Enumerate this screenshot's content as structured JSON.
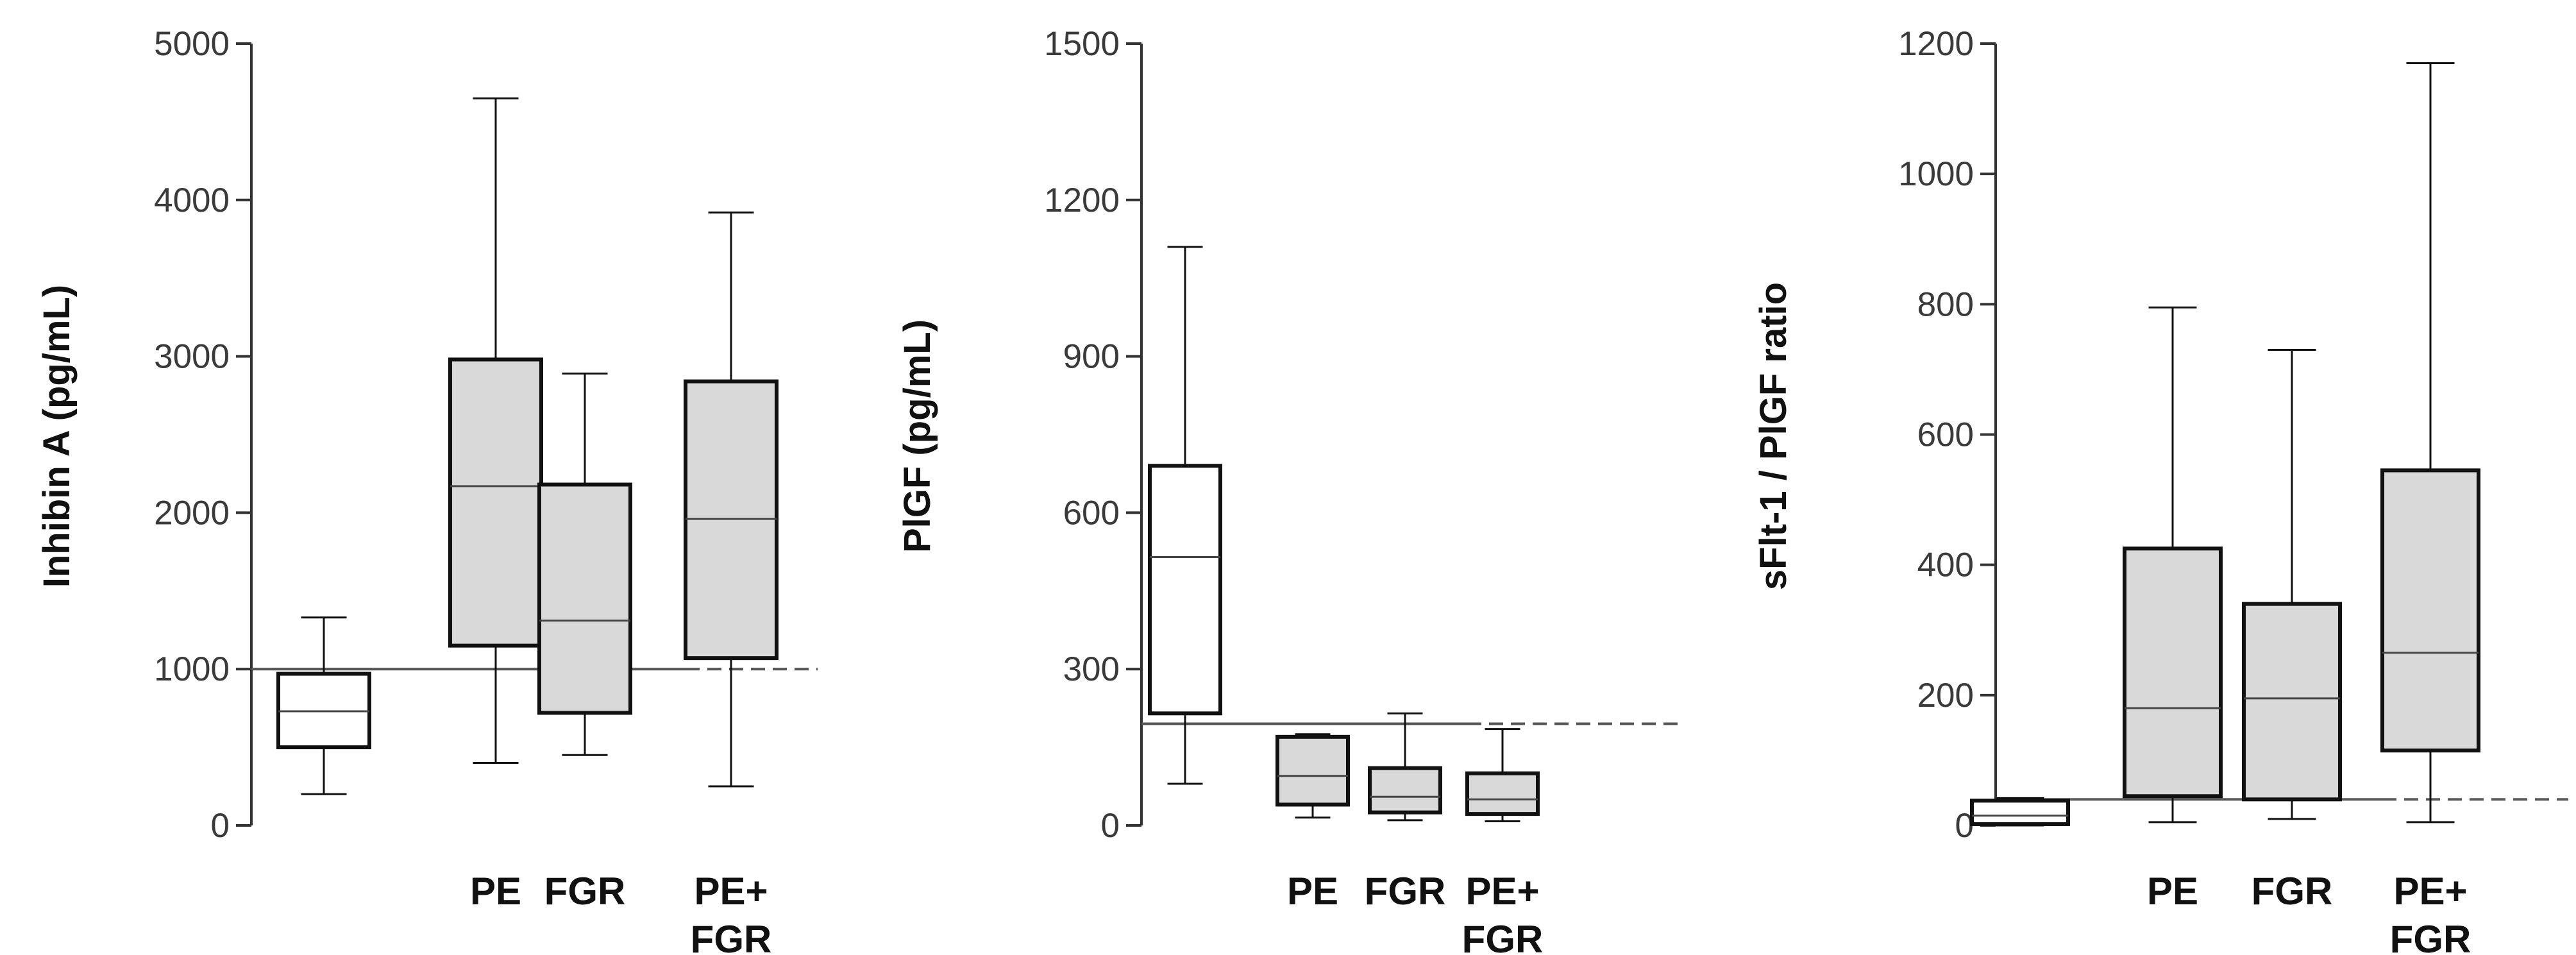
{
  "chart_data": [
    {
      "type": "box",
      "ylabel": "Inhibin A (pg/mL)",
      "ylim": [
        0,
        5000
      ],
      "yticks": [
        0,
        1000,
        2000,
        3000,
        4000,
        5000
      ],
      "tick_labels": [
        "0",
        "1000",
        "2000",
        "3000",
        "4000",
        "5000"
      ],
      "categories": [
        "",
        "PE",
        "FGR",
        "PE+\nFGR"
      ],
      "category_lines": [
        [
          ""
        ],
        [
          "PE"
        ],
        [
          "FGR"
        ],
        [
          "PE+",
          "FGR"
        ]
      ],
      "reference_line": 1000,
      "boxes": [
        {
          "whisker_low": 200,
          "q1": 500,
          "median": 730,
          "q3": 970,
          "whisker_high": 1330,
          "fill": "#ffffff"
        },
        {
          "whisker_low": 400,
          "q1": 1150,
          "median": 2170,
          "q3": 2980,
          "whisker_high": 4650,
          "fill": "#d9d9d9"
        },
        {
          "whisker_low": 450,
          "q1": 720,
          "median": 1310,
          "q3": 2180,
          "whisker_high": 2890,
          "fill": "#d9d9d9"
        },
        {
          "whisker_low": 250,
          "q1": 1070,
          "median": 1960,
          "q3": 2840,
          "whisker_high": 3920,
          "fill": "#d9d9d9"
        }
      ]
    },
    {
      "type": "box",
      "ylabel": "PlGF  (pg/mL)",
      "ylim": [
        0,
        1500
      ],
      "yticks": [
        0,
        300,
        600,
        900,
        1200,
        1500
      ],
      "tick_labels": [
        "0",
        "300",
        "600",
        "900",
        "1200",
        "1500"
      ],
      "categories": [
        "",
        "PE",
        "FGR",
        "PE+\nFGR"
      ],
      "category_lines": [
        [
          ""
        ],
        [
          "PE"
        ],
        [
          "FGR"
        ],
        [
          "PE+",
          "FGR"
        ]
      ],
      "reference_line": 195,
      "boxes": [
        {
          "whisker_low": 80,
          "q1": 215,
          "median": 515,
          "q3": 690,
          "whisker_high": 1110,
          "fill": "#ffffff"
        },
        {
          "whisker_low": 15,
          "q1": 40,
          "median": 95,
          "q3": 170,
          "whisker_high": 175,
          "fill": "#d9d9d9"
        },
        {
          "whisker_low": 10,
          "q1": 25,
          "median": 55,
          "q3": 110,
          "whisker_high": 215,
          "fill": "#d9d9d9"
        },
        {
          "whisker_low": 8,
          "q1": 22,
          "median": 50,
          "q3": 100,
          "whisker_high": 185,
          "fill": "#d9d9d9"
        }
      ]
    },
    {
      "type": "box",
      "ylabel": "sFlt-1 / PlGF ratio",
      "ylim": [
        0,
        1200
      ],
      "yticks": [
        0,
        200,
        400,
        600,
        800,
        1000,
        1200
      ],
      "tick_labels": [
        "0",
        "200",
        "400",
        "600",
        "800",
        "1000",
        "1200"
      ],
      "categories": [
        "",
        "PE",
        "FGR",
        "PE+\nFGR"
      ],
      "category_lines": [
        [
          ""
        ],
        [
          "PE"
        ],
        [
          "FGR"
        ],
        [
          "PE+",
          "FGR"
        ]
      ],
      "reference_line": 40,
      "boxes": [
        {
          "whisker_low": 0,
          "q1": 2,
          "median": 15,
          "q3": 38,
          "whisker_high": 42,
          "fill": "#ffffff"
        },
        {
          "whisker_low": 5,
          "q1": 45,
          "median": 180,
          "q3": 425,
          "whisker_high": 795,
          "fill": "#d9d9d9"
        },
        {
          "whisker_low": 10,
          "q1": 40,
          "median": 195,
          "q3": 340,
          "whisker_high": 730,
          "fill": "#d9d9d9"
        },
        {
          "whisker_low": 5,
          "q1": 115,
          "median": 265,
          "q3": 545,
          "whisker_high": 1170,
          "fill": "#d9d9d9"
        }
      ]
    }
  ],
  "colors": {
    "box_stroke": "#111111",
    "group_fill": "#d9d9d9",
    "control_fill": "#ffffff",
    "axis": "#333333",
    "reference_line": "#555555"
  }
}
